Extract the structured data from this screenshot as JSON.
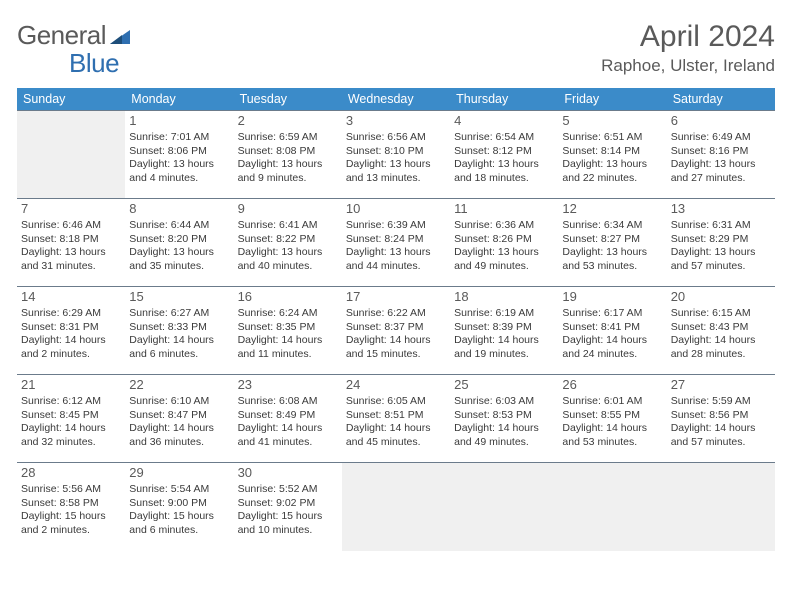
{
  "logo": {
    "part1": "General",
    "part2": "Blue"
  },
  "title": "April 2024",
  "location": "Raphoe, Ulster, Ireland",
  "header_bg": "#3b8bc9",
  "header_text": "#ffffff",
  "rule_color": "#6b7b8b",
  "empty_bg": "#f0f0f0",
  "cell_bg": "#ffffff",
  "days_of_week": [
    "Sunday",
    "Monday",
    "Tuesday",
    "Wednesday",
    "Thursday",
    "Friday",
    "Saturday"
  ],
  "weeks": [
    [
      null,
      {
        "n": "1",
        "sunrise": "Sunrise: 7:01 AM",
        "sunset": "Sunset: 8:06 PM",
        "dl1": "Daylight: 13 hours",
        "dl2": "and 4 minutes."
      },
      {
        "n": "2",
        "sunrise": "Sunrise: 6:59 AM",
        "sunset": "Sunset: 8:08 PM",
        "dl1": "Daylight: 13 hours",
        "dl2": "and 9 minutes."
      },
      {
        "n": "3",
        "sunrise": "Sunrise: 6:56 AM",
        "sunset": "Sunset: 8:10 PM",
        "dl1": "Daylight: 13 hours",
        "dl2": "and 13 minutes."
      },
      {
        "n": "4",
        "sunrise": "Sunrise: 6:54 AM",
        "sunset": "Sunset: 8:12 PM",
        "dl1": "Daylight: 13 hours",
        "dl2": "and 18 minutes."
      },
      {
        "n": "5",
        "sunrise": "Sunrise: 6:51 AM",
        "sunset": "Sunset: 8:14 PM",
        "dl1": "Daylight: 13 hours",
        "dl2": "and 22 minutes."
      },
      {
        "n": "6",
        "sunrise": "Sunrise: 6:49 AM",
        "sunset": "Sunset: 8:16 PM",
        "dl1": "Daylight: 13 hours",
        "dl2": "and 27 minutes."
      }
    ],
    [
      {
        "n": "7",
        "sunrise": "Sunrise: 6:46 AM",
        "sunset": "Sunset: 8:18 PM",
        "dl1": "Daylight: 13 hours",
        "dl2": "and 31 minutes."
      },
      {
        "n": "8",
        "sunrise": "Sunrise: 6:44 AM",
        "sunset": "Sunset: 8:20 PM",
        "dl1": "Daylight: 13 hours",
        "dl2": "and 35 minutes."
      },
      {
        "n": "9",
        "sunrise": "Sunrise: 6:41 AM",
        "sunset": "Sunset: 8:22 PM",
        "dl1": "Daylight: 13 hours",
        "dl2": "and 40 minutes."
      },
      {
        "n": "10",
        "sunrise": "Sunrise: 6:39 AM",
        "sunset": "Sunset: 8:24 PM",
        "dl1": "Daylight: 13 hours",
        "dl2": "and 44 minutes."
      },
      {
        "n": "11",
        "sunrise": "Sunrise: 6:36 AM",
        "sunset": "Sunset: 8:26 PM",
        "dl1": "Daylight: 13 hours",
        "dl2": "and 49 minutes."
      },
      {
        "n": "12",
        "sunrise": "Sunrise: 6:34 AM",
        "sunset": "Sunset: 8:27 PM",
        "dl1": "Daylight: 13 hours",
        "dl2": "and 53 minutes."
      },
      {
        "n": "13",
        "sunrise": "Sunrise: 6:31 AM",
        "sunset": "Sunset: 8:29 PM",
        "dl1": "Daylight: 13 hours",
        "dl2": "and 57 minutes."
      }
    ],
    [
      {
        "n": "14",
        "sunrise": "Sunrise: 6:29 AM",
        "sunset": "Sunset: 8:31 PM",
        "dl1": "Daylight: 14 hours",
        "dl2": "and 2 minutes."
      },
      {
        "n": "15",
        "sunrise": "Sunrise: 6:27 AM",
        "sunset": "Sunset: 8:33 PM",
        "dl1": "Daylight: 14 hours",
        "dl2": "and 6 minutes."
      },
      {
        "n": "16",
        "sunrise": "Sunrise: 6:24 AM",
        "sunset": "Sunset: 8:35 PM",
        "dl1": "Daylight: 14 hours",
        "dl2": "and 11 minutes."
      },
      {
        "n": "17",
        "sunrise": "Sunrise: 6:22 AM",
        "sunset": "Sunset: 8:37 PM",
        "dl1": "Daylight: 14 hours",
        "dl2": "and 15 minutes."
      },
      {
        "n": "18",
        "sunrise": "Sunrise: 6:19 AM",
        "sunset": "Sunset: 8:39 PM",
        "dl1": "Daylight: 14 hours",
        "dl2": "and 19 minutes."
      },
      {
        "n": "19",
        "sunrise": "Sunrise: 6:17 AM",
        "sunset": "Sunset: 8:41 PM",
        "dl1": "Daylight: 14 hours",
        "dl2": "and 24 minutes."
      },
      {
        "n": "20",
        "sunrise": "Sunrise: 6:15 AM",
        "sunset": "Sunset: 8:43 PM",
        "dl1": "Daylight: 14 hours",
        "dl2": "and 28 minutes."
      }
    ],
    [
      {
        "n": "21",
        "sunrise": "Sunrise: 6:12 AM",
        "sunset": "Sunset: 8:45 PM",
        "dl1": "Daylight: 14 hours",
        "dl2": "and 32 minutes."
      },
      {
        "n": "22",
        "sunrise": "Sunrise: 6:10 AM",
        "sunset": "Sunset: 8:47 PM",
        "dl1": "Daylight: 14 hours",
        "dl2": "and 36 minutes."
      },
      {
        "n": "23",
        "sunrise": "Sunrise: 6:08 AM",
        "sunset": "Sunset: 8:49 PM",
        "dl1": "Daylight: 14 hours",
        "dl2": "and 41 minutes."
      },
      {
        "n": "24",
        "sunrise": "Sunrise: 6:05 AM",
        "sunset": "Sunset: 8:51 PM",
        "dl1": "Daylight: 14 hours",
        "dl2": "and 45 minutes."
      },
      {
        "n": "25",
        "sunrise": "Sunrise: 6:03 AM",
        "sunset": "Sunset: 8:53 PM",
        "dl1": "Daylight: 14 hours",
        "dl2": "and 49 minutes."
      },
      {
        "n": "26",
        "sunrise": "Sunrise: 6:01 AM",
        "sunset": "Sunset: 8:55 PM",
        "dl1": "Daylight: 14 hours",
        "dl2": "and 53 minutes."
      },
      {
        "n": "27",
        "sunrise": "Sunrise: 5:59 AM",
        "sunset": "Sunset: 8:56 PM",
        "dl1": "Daylight: 14 hours",
        "dl2": "and 57 minutes."
      }
    ],
    [
      {
        "n": "28",
        "sunrise": "Sunrise: 5:56 AM",
        "sunset": "Sunset: 8:58 PM",
        "dl1": "Daylight: 15 hours",
        "dl2": "and 2 minutes."
      },
      {
        "n": "29",
        "sunrise": "Sunrise: 5:54 AM",
        "sunset": "Sunset: 9:00 PM",
        "dl1": "Daylight: 15 hours",
        "dl2": "and 6 minutes."
      },
      {
        "n": "30",
        "sunrise": "Sunrise: 5:52 AM",
        "sunset": "Sunset: 9:02 PM",
        "dl1": "Daylight: 15 hours",
        "dl2": "and 10 minutes."
      },
      null,
      null,
      null,
      null
    ]
  ]
}
